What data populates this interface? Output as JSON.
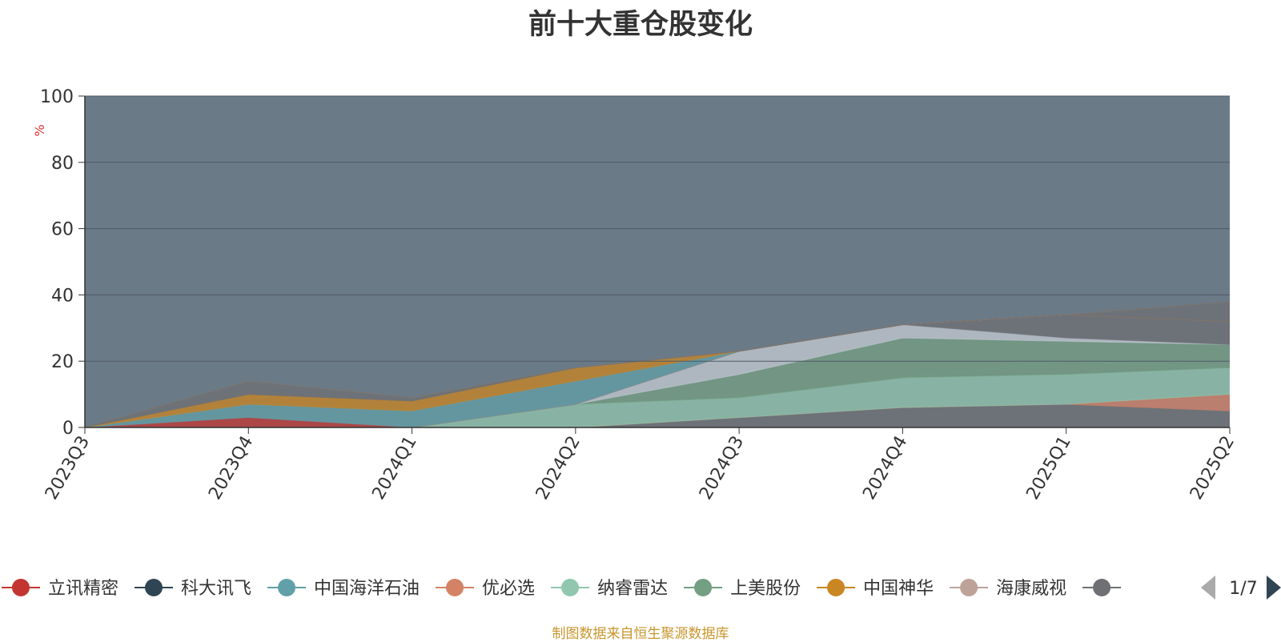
{
  "chart_data": {
    "type": "area",
    "title": "前十大重仓股变化",
    "ylabel": "%",
    "xlabel": "",
    "ylim": [
      0,
      100
    ],
    "yticks": [
      "0",
      "20",
      "40",
      "60",
      "80",
      "100"
    ],
    "categories": [
      "2023Q3",
      "2023Q4",
      "2024Q1",
      "2024Q2",
      "2024Q3",
      "2024Q4",
      "2025Q1",
      "2025Q2"
    ],
    "grid": true,
    "legend": {
      "placement": "bottom",
      "page": "1/7",
      "items": [
        {
          "name": "立讯精密",
          "color": "#c23531"
        },
        {
          "name": "科大讯飞",
          "color": "#2f4554"
        },
        {
          "name": "中国海洋石油",
          "color": "#61a0a8"
        },
        {
          "name": "优必选",
          "color": "#d48265"
        },
        {
          "name": "纳睿雷达",
          "color": "#91c7ae"
        },
        {
          "name": "上美股份",
          "color": "#749f83"
        },
        {
          "name": "中国神华",
          "color": "#ca8622"
        },
        {
          "name": "海康威视",
          "color": "#bda29a"
        },
        {
          "name": "",
          "color": "#6e7074"
        }
      ]
    },
    "series": [
      {
        "color": "#6e7074",
        "values": [
          0,
          0,
          0,
          0,
          3,
          6,
          7,
          5
        ]
      },
      {
        "color": "#d48265",
        "values": [
          0,
          0,
          0,
          0,
          0,
          0,
          0,
          5
        ]
      },
      {
        "color": "#91c7ae",
        "values": [
          0,
          0,
          0,
          7,
          6,
          9,
          9,
          8
        ]
      },
      {
        "color": "#749f83",
        "values": [
          0,
          0,
          0,
          0,
          0,
          0,
          4,
          0
        ]
      },
      {
        "color": "#749f83",
        "values": [
          0,
          0,
          0,
          0,
          7,
          12,
          6,
          7
        ]
      },
      {
        "color": "#c4ccd3",
        "values": [
          0,
          0,
          0,
          0,
          7,
          4,
          1,
          0
        ]
      },
      {
        "color": "#6e7074",
        "values": [
          0,
          0,
          0,
          0,
          0,
          0,
          7,
          7
        ]
      },
      {
        "color": "#c23531",
        "values": [
          0,
          3,
          0,
          0,
          0,
          0,
          0,
          0
        ]
      },
      {
        "color": "#61a0a8",
        "values": [
          0,
          4,
          5,
          7,
          0,
          0,
          0,
          0
        ]
      },
      {
        "color": "#ca8622",
        "values": [
          0,
          3,
          3,
          4,
          0,
          0,
          0,
          0
        ]
      },
      {
        "color": "#6e7074",
        "values": [
          0,
          0,
          0,
          0,
          0,
          0,
          0,
          6
        ]
      },
      {
        "color": "#6e7074",
        "values": [
          0,
          4,
          1,
          0,
          0,
          0,
          0,
          0
        ]
      },
      {
        "color": "#91c7ae",
        "values": [
          0,
          0,
          0,
          0,
          0,
          0,
          0,
          0
        ]
      },
      {
        "color": "#ff9f7f",
        "values": [
          0,
          0,
          0,
          0,
          0,
          0,
          0,
          0
        ]
      },
      {
        "color": "#2f4554",
        "values": [
          0,
          0,
          0,
          0,
          0,
          0,
          0,
          0
        ]
      }
    ]
  },
  "footer": "制图数据来自恒生聚源数据库"
}
